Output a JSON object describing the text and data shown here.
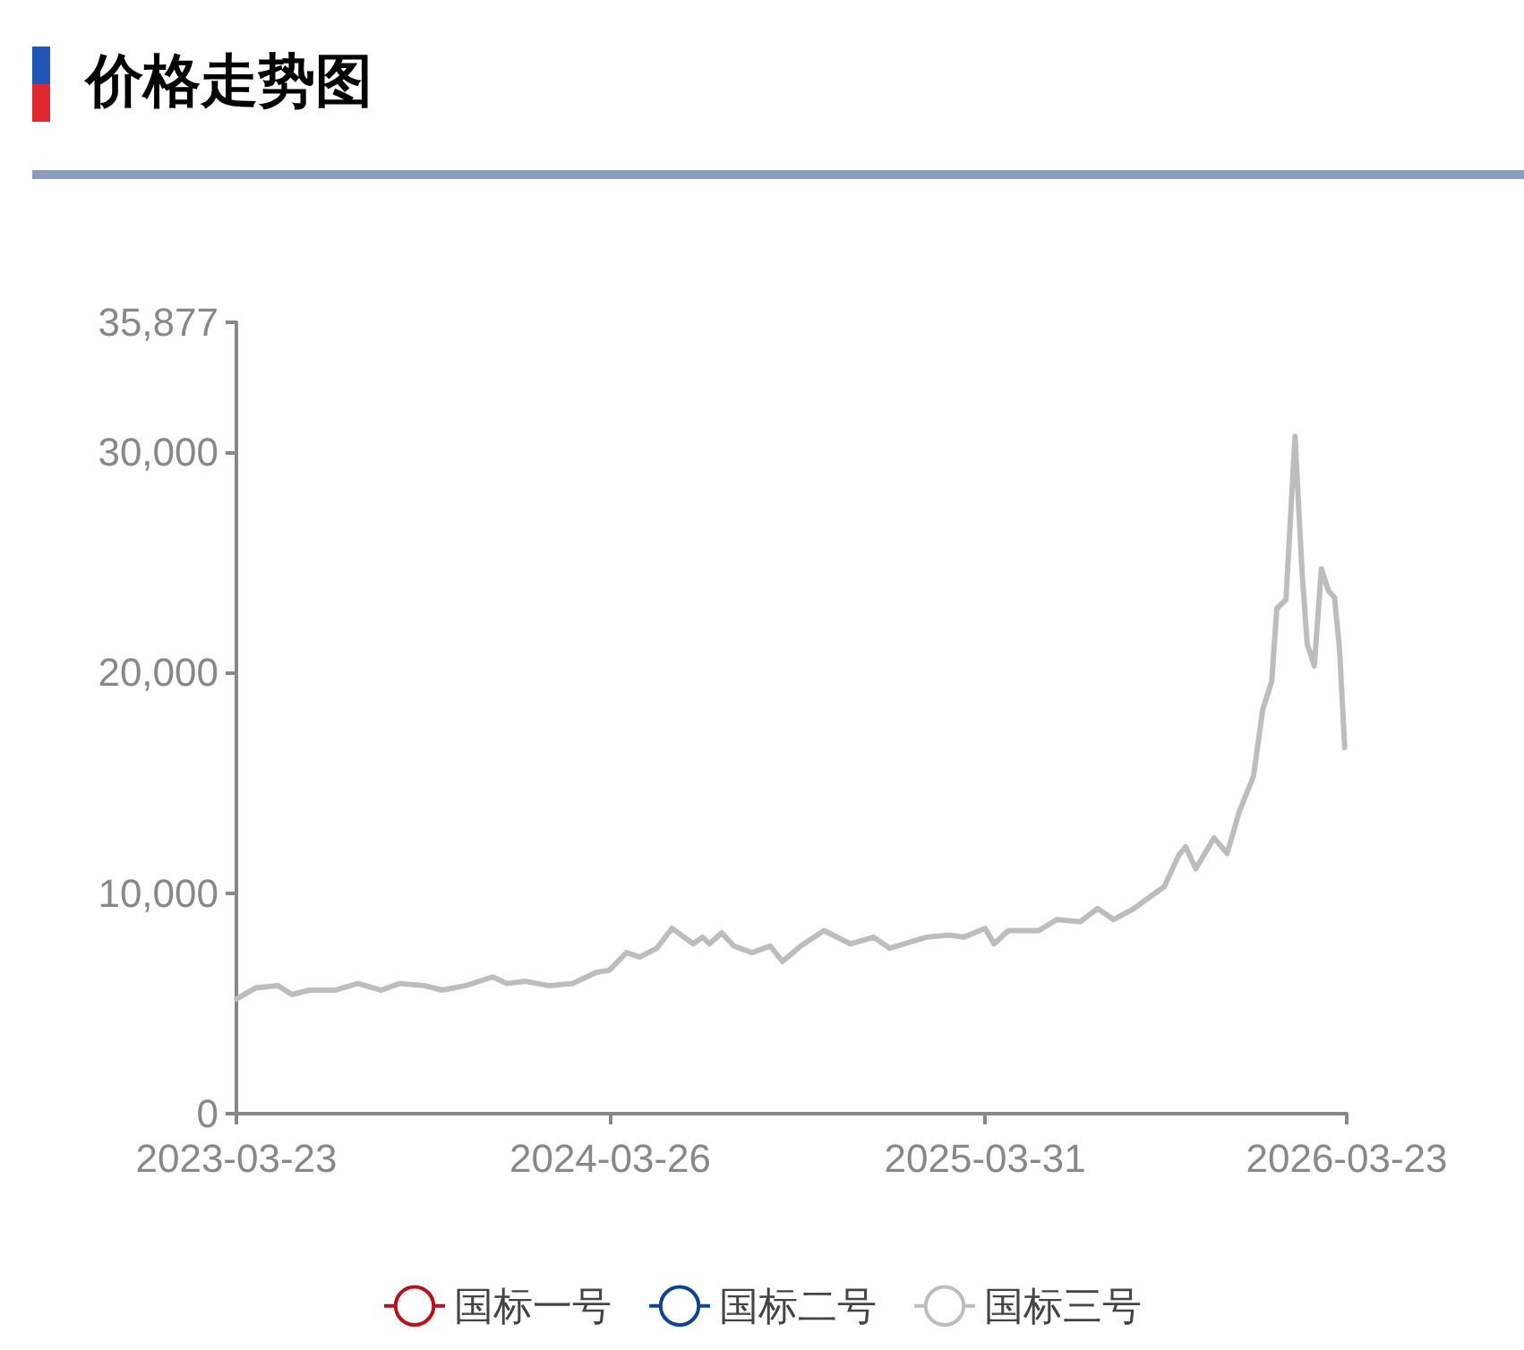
{
  "chart_data": {
    "type": "line",
    "title": "价格走势图",
    "x": [
      "2023-03-23",
      "2023-04-11",
      "2023-05-03",
      "2023-05-17",
      "2023-06-03",
      "2023-06-28",
      "2023-07-21",
      "2023-08-13",
      "2023-08-31",
      "2023-09-25",
      "2023-10-12",
      "2023-11-04",
      "2023-12-01",
      "2023-12-15",
      "2024-01-02",
      "2024-01-26",
      "2024-02-18",
      "2024-03-12",
      "2024-03-25",
      "2024-04-11",
      "2024-04-24",
      "2024-05-11",
      "2024-05-26",
      "2024-06-07",
      "2024-06-16",
      "2024-06-25",
      "2024-07-02",
      "2024-07-14",
      "2024-07-26",
      "2024-08-13",
      "2024-08-31",
      "2024-09-12",
      "2024-09-30",
      "2024-10-23",
      "2024-11-18",
      "2024-12-11",
      "2024-12-27",
      "2025-02-01",
      "2025-02-24",
      "2025-03-10",
      "2025-03-31",
      "2025-04-09",
      "2025-04-23",
      "2025-05-23",
      "2025-06-10",
      "2025-07-03",
      "2025-07-20",
      "2025-08-05",
      "2025-08-25",
      "2025-09-06",
      "2025-09-24",
      "2025-10-08",
      "2025-10-15",
      "2025-10-25",
      "2025-11-12",
      "2025-11-25",
      "2025-12-07",
      "2025-12-21",
      "2025-12-30",
      "2026-01-08",
      "2026-01-13",
      "2026-01-22",
      "2026-01-31",
      "2026-02-07",
      "2026-02-12",
      "2026-02-19",
      "2026-02-26",
      "2026-03-05",
      "2026-03-11",
      "2026-03-16",
      "2026-03-21"
    ],
    "series": [
      {
        "name": "国标一号",
        "color": "#b5121b",
        "values": [
          null,
          null,
          null,
          null,
          null,
          null,
          null,
          null,
          null,
          null,
          null,
          null,
          null,
          null,
          null,
          null,
          null,
          null,
          null,
          null,
          null,
          null,
          null,
          null,
          null,
          null,
          null,
          null,
          null,
          null,
          null,
          null,
          null,
          null,
          null,
          null,
          null,
          null,
          null,
          null,
          null,
          null,
          null,
          null,
          null,
          null,
          null,
          null,
          null,
          null,
          null,
          null,
          null,
          null,
          null,
          null,
          null,
          null,
          null,
          null,
          null,
          null,
          null,
          null,
          null,
          null,
          null,
          null,
          null,
          null,
          null
        ]
      },
      {
        "name": "国标二号",
        "color": "#0d4590",
        "values": [
          null,
          null,
          null,
          null,
          null,
          null,
          null,
          null,
          null,
          null,
          null,
          null,
          null,
          null,
          null,
          null,
          null,
          null,
          null,
          null,
          null,
          null,
          null,
          null,
          null,
          null,
          null,
          null,
          null,
          null,
          null,
          null,
          null,
          null,
          null,
          null,
          null,
          null,
          null,
          null,
          null,
          null,
          null,
          null,
          null,
          null,
          null,
          null,
          null,
          null,
          null,
          null,
          null,
          null,
          null,
          null,
          null,
          null,
          null,
          null,
          null,
          null,
          null,
          null,
          null,
          null,
          null,
          null,
          null,
          null,
          null
        ]
      },
      {
        "name": "国标三号",
        "color": "#bdbdbd",
        "values": [
          5200,
          5700,
          5800,
          5400,
          5600,
          5600,
          5900,
          5600,
          5900,
          5800,
          5600,
          5800,
          6200,
          5900,
          6000,
          5800,
          5900,
          6400,
          6500,
          7300,
          7100,
          7500,
          8400,
          8000,
          7700,
          8000,
          7700,
          8200,
          7600,
          7300,
          7600,
          6900,
          7600,
          8300,
          7700,
          8000,
          7500,
          8000,
          8100,
          8000,
          8400,
          7700,
          8300,
          8300,
          8800,
          8700,
          9300,
          8800,
          9300,
          9700,
          10300,
          11700,
          12100,
          11100,
          12500,
          11800,
          13700,
          15300,
          18300,
          19600,
          22900,
          23300,
          30700,
          24500,
          21300,
          20300,
          24700,
          23700,
          23400,
          21000,
          16600
        ]
      }
    ],
    "xlim": [
      "2023-03-23",
      "2026-03-23"
    ],
    "xticks": [
      "2023-03-23",
      "2024-03-26",
      "2025-03-31",
      "2026-03-23"
    ],
    "ylim": [
      0,
      35877
    ],
    "yticks": [
      0,
      {
        "value": 10000,
        "label": "10,000"
      },
      {
        "value": 20000,
        "label": "20,000"
      },
      {
        "value": 30000,
        "label": "30,000"
      },
      {
        "value": 35877,
        "label": "35,877"
      }
    ],
    "grid": false,
    "legend": "bottom"
  }
}
